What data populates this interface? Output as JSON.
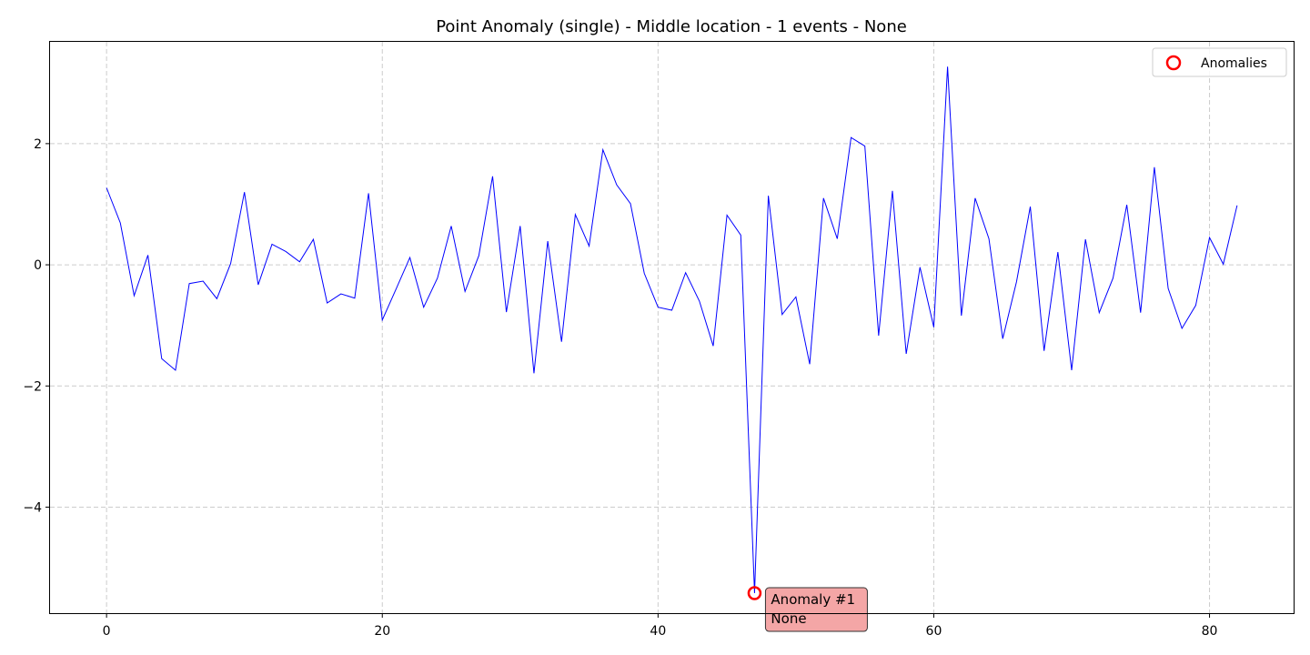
{
  "chart_data": {
    "type": "line",
    "title": "Point Anomaly (single) - Middle location - 1 events - None",
    "xlabel": "",
    "ylabel": "",
    "xlim": [
      -4.1,
      86.1
    ],
    "ylim": [
      -5.75,
      3.68
    ],
    "x_ticks": [
      0,
      20,
      40,
      60,
      80
    ],
    "x_tick_labels": [
      "0",
      "20",
      "40",
      "60",
      "80"
    ],
    "y_ticks": [
      2,
      0,
      -2,
      -4
    ],
    "y_tick_labels": [
      "2",
      "0",
      "−2",
      "−4"
    ],
    "grid": true,
    "legend_position": "top-right",
    "series": [
      {
        "color": "#0000ff",
        "y": [
          1.27,
          0.69,
          -0.51,
          0.16,
          -1.55,
          -1.74,
          -0.31,
          -0.27,
          -0.56,
          0.02,
          1.2,
          -0.33,
          0.34,
          0.22,
          0.05,
          0.42,
          -0.63,
          -0.48,
          -0.55,
          1.18,
          -0.91,
          -0.4,
          0.12,
          -0.7,
          -0.22,
          0.64,
          -0.44,
          0.15,
          1.46,
          -0.78,
          0.64,
          -1.79,
          0.39,
          -1.27,
          0.83,
          0.31,
          1.9,
          1.32,
          1.01,
          -0.14,
          -0.7,
          -0.75,
          -0.13,
          -0.6,
          -1.34,
          0.82,
          0.49,
          -5.42,
          1.14,
          -0.82,
          -0.53,
          -1.64,
          1.1,
          0.43,
          2.1,
          1.96,
          -1.17,
          1.22,
          -1.47,
          -0.04,
          -1.03,
          3.27,
          -0.84,
          1.1,
          0.43,
          -1.22,
          -0.28,
          0.96,
          -1.42,
          0.21,
          -1.74,
          0.42,
          -0.79,
          -0.22,
          0.99,
          -0.79,
          1.61,
          -0.39,
          -1.05,
          -0.67,
          0.45,
          0.01,
          0.98
        ]
      }
    ],
    "anomalies": {
      "legend_label": "Anomalies",
      "color": "#ff0000",
      "points": [
        {
          "x": 47,
          "y": -5.42,
          "label_line1": "Anomaly #1",
          "label_line2": "None"
        }
      ]
    }
  }
}
